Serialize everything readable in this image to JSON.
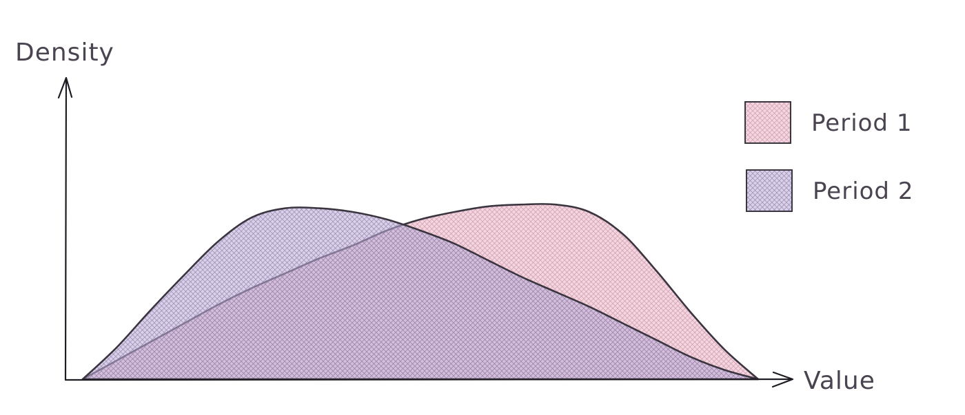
{
  "chart_data": {
    "type": "area",
    "title": "",
    "xlabel": "Value",
    "ylabel": "Density",
    "x": [
      0,
      5,
      10,
      15,
      20,
      25,
      30,
      35,
      40,
      45,
      50,
      55,
      60,
      65,
      70,
      75,
      80,
      85,
      90,
      95,
      100
    ],
    "xlim": [
      0,
      100
    ],
    "ylim": [
      0,
      1
    ],
    "grid": false,
    "ticks": false,
    "legend_position": "top-right",
    "series": [
      {
        "name": "Period 1",
        "color": "#e8b4c4",
        "hatch": "#c98ea3",
        "values": [
          0.0,
          0.1,
          0.2,
          0.3,
          0.4,
          0.49,
          0.57,
          0.65,
          0.72,
          0.8,
          0.86,
          0.9,
          0.93,
          0.94,
          0.94,
          0.9,
          0.78,
          0.58,
          0.36,
          0.16,
          0.0
        ]
      },
      {
        "name": "Period 2",
        "color": "#b9aad4",
        "hatch": "#8c7aa8",
        "values": [
          0.0,
          0.17,
          0.37,
          0.56,
          0.74,
          0.87,
          0.92,
          0.92,
          0.9,
          0.86,
          0.8,
          0.73,
          0.64,
          0.55,
          0.47,
          0.39,
          0.3,
          0.21,
          0.12,
          0.05,
          0.0
        ]
      }
    ]
  }
}
